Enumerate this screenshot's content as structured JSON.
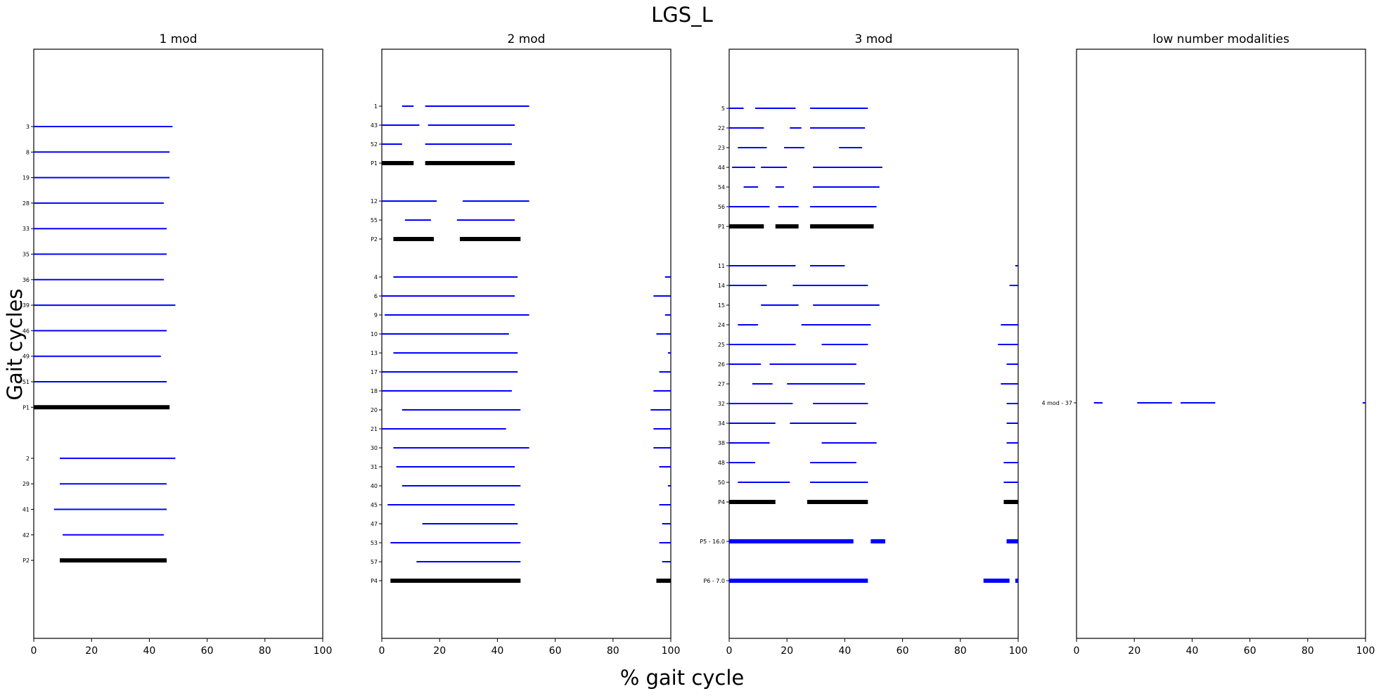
{
  "figure": {
    "title": "LGS_L",
    "xlabel": "% gait cycle",
    "ylabel": "Gait cycles"
  },
  "chart_data": [
    {
      "type": "gantt",
      "title": "1 mod",
      "xlim": [
        0,
        100
      ],
      "xticks": [
        "0",
        "20",
        "40",
        "60",
        "80",
        "100"
      ],
      "rows": [
        {
          "label": "3",
          "color": "#0000ff",
          "thick": false,
          "segments": [
            [
              0,
              48
            ]
          ]
        },
        {
          "label": "8",
          "color": "#0000ff",
          "thick": false,
          "segments": [
            [
              0,
              47
            ]
          ]
        },
        {
          "label": "19",
          "color": "#0000ff",
          "thick": false,
          "segments": [
            [
              0,
              47
            ]
          ]
        },
        {
          "label": "28",
          "color": "#0000ff",
          "thick": false,
          "segments": [
            [
              0,
              45
            ]
          ]
        },
        {
          "label": "33",
          "color": "#0000ff",
          "thick": false,
          "segments": [
            [
              0,
              46
            ]
          ]
        },
        {
          "label": "35",
          "color": "#0000ff",
          "thick": false,
          "segments": [
            [
              0,
              46
            ]
          ]
        },
        {
          "label": "36",
          "color": "#0000ff",
          "thick": false,
          "segments": [
            [
              0,
              45
            ]
          ]
        },
        {
          "label": "39",
          "color": "#0000ff",
          "thick": false,
          "segments": [
            [
              0,
              49
            ]
          ]
        },
        {
          "label": "46",
          "color": "#0000ff",
          "thick": false,
          "segments": [
            [
              0,
              46
            ]
          ]
        },
        {
          "label": "49",
          "color": "#0000ff",
          "thick": false,
          "segments": [
            [
              0,
              44
            ]
          ]
        },
        {
          "label": "51",
          "color": "#0000ff",
          "thick": false,
          "segments": [
            [
              0,
              46
            ]
          ]
        },
        {
          "label": "P1",
          "color": "#000000",
          "thick": true,
          "segments": [
            [
              0,
              47
            ]
          ]
        },
        {
          "gap": true
        },
        {
          "label": "2",
          "color": "#0000ff",
          "thick": false,
          "segments": [
            [
              9,
              49
            ]
          ]
        },
        {
          "label": "29",
          "color": "#0000ff",
          "thick": false,
          "segments": [
            [
              9,
              46
            ]
          ]
        },
        {
          "label": "41",
          "color": "#0000ff",
          "thick": false,
          "segments": [
            [
              7,
              46
            ]
          ]
        },
        {
          "label": "42",
          "color": "#0000ff",
          "thick": false,
          "segments": [
            [
              10,
              45
            ]
          ]
        },
        {
          "label": "P2",
          "color": "#000000",
          "thick": true,
          "segments": [
            [
              9,
              46
            ]
          ]
        }
      ]
    },
    {
      "type": "gantt",
      "title": "2 mod",
      "xlim": [
        0,
        100
      ],
      "xticks": [
        "0",
        "20",
        "40",
        "60",
        "80",
        "100"
      ],
      "rows": [
        {
          "label": "1",
          "color": "#0000ff",
          "thick": false,
          "segments": [
            [
              7,
              11
            ],
            [
              15,
              51
            ]
          ]
        },
        {
          "label": "43",
          "color": "#0000ff",
          "thick": false,
          "segments": [
            [
              0,
              13
            ],
            [
              16,
              46
            ]
          ]
        },
        {
          "label": "52",
          "color": "#0000ff",
          "thick": false,
          "segments": [
            [
              0,
              7
            ],
            [
              15,
              45
            ]
          ]
        },
        {
          "label": "P1",
          "color": "#000000",
          "thick": true,
          "segments": [
            [
              0,
              11
            ],
            [
              15,
              46
            ]
          ]
        },
        {
          "gap": true
        },
        {
          "label": "12",
          "color": "#0000ff",
          "thick": false,
          "segments": [
            [
              0,
              19
            ],
            [
              28,
              51
            ]
          ]
        },
        {
          "label": "55",
          "color": "#0000ff",
          "thick": false,
          "segments": [
            [
              8,
              17
            ],
            [
              26,
              46
            ]
          ]
        },
        {
          "label": "P2",
          "color": "#000000",
          "thick": true,
          "segments": [
            [
              4,
              18
            ],
            [
              27,
              48
            ]
          ]
        },
        {
          "gap": true
        },
        {
          "label": "4",
          "color": "#0000ff",
          "thick": false,
          "segments": [
            [
              4,
              47
            ],
            [
              98,
              100
            ]
          ]
        },
        {
          "label": "6",
          "color": "#0000ff",
          "thick": false,
          "segments": [
            [
              0,
              46
            ],
            [
              94,
              100
            ]
          ]
        },
        {
          "label": "9",
          "color": "#0000ff",
          "thick": false,
          "segments": [
            [
              1,
              51
            ],
            [
              98,
              100
            ]
          ]
        },
        {
          "label": "10",
          "color": "#0000ff",
          "thick": false,
          "segments": [
            [
              0,
              44
            ],
            [
              95,
              100
            ]
          ]
        },
        {
          "label": "13",
          "color": "#0000ff",
          "thick": false,
          "segments": [
            [
              4,
              47
            ],
            [
              99,
              100
            ]
          ]
        },
        {
          "label": "17",
          "color": "#0000ff",
          "thick": false,
          "segments": [
            [
              0,
              47
            ],
            [
              96,
              100
            ]
          ]
        },
        {
          "label": "18",
          "color": "#0000ff",
          "thick": false,
          "segments": [
            [
              0,
              45
            ],
            [
              94,
              100
            ]
          ]
        },
        {
          "label": "20",
          "color": "#0000ff",
          "thick": false,
          "segments": [
            [
              7,
              48
            ],
            [
              93,
              100
            ]
          ]
        },
        {
          "label": "21",
          "color": "#0000ff",
          "thick": false,
          "segments": [
            [
              0,
              43
            ],
            [
              94,
              100
            ]
          ]
        },
        {
          "label": "30",
          "color": "#0000ff",
          "thick": false,
          "segments": [
            [
              4,
              51
            ],
            [
              94,
              100
            ]
          ]
        },
        {
          "label": "31",
          "color": "#0000ff",
          "thick": false,
          "segments": [
            [
              5,
              46
            ],
            [
              96,
              100
            ]
          ]
        },
        {
          "label": "40",
          "color": "#0000ff",
          "thick": false,
          "segments": [
            [
              7,
              48
            ],
            [
              99,
              100
            ]
          ]
        },
        {
          "label": "45",
          "color": "#0000ff",
          "thick": false,
          "segments": [
            [
              2,
              46
            ],
            [
              96,
              100
            ]
          ]
        },
        {
          "label": "47",
          "color": "#0000ff",
          "thick": false,
          "segments": [
            [
              14,
              47
            ],
            [
              97,
              100
            ]
          ]
        },
        {
          "label": "53",
          "color": "#0000ff",
          "thick": false,
          "segments": [
            [
              3,
              48
            ],
            [
              96,
              100
            ]
          ]
        },
        {
          "label": "57",
          "color": "#0000ff",
          "thick": false,
          "segments": [
            [
              12,
              48
            ],
            [
              97,
              100
            ]
          ]
        },
        {
          "label": "P4",
          "color": "#000000",
          "thick": true,
          "segments": [
            [
              3,
              48
            ],
            [
              95,
              100
            ]
          ]
        }
      ]
    },
    {
      "type": "gantt",
      "title": "3 mod",
      "xlim": [
        0,
        100
      ],
      "xticks": [
        "0",
        "20",
        "40",
        "60",
        "80",
        "100"
      ],
      "rows": [
        {
          "label": "5",
          "color": "#0000ff",
          "thick": false,
          "segments": [
            [
              0,
              5
            ],
            [
              9,
              23
            ],
            [
              28,
              48
            ]
          ]
        },
        {
          "label": "22",
          "color": "#0000ff",
          "thick": false,
          "segments": [
            [
              0,
              12
            ],
            [
              21,
              25
            ],
            [
              28,
              47
            ]
          ]
        },
        {
          "label": "23",
          "color": "#0000ff",
          "thick": false,
          "segments": [
            [
              3,
              13
            ],
            [
              19,
              26
            ],
            [
              38,
              46
            ]
          ]
        },
        {
          "label": "44",
          "color": "#0000ff",
          "thick": false,
          "segments": [
            [
              1,
              9
            ],
            [
              11,
              20
            ],
            [
              29,
              53
            ]
          ]
        },
        {
          "label": "54",
          "color": "#0000ff",
          "thick": false,
          "segments": [
            [
              5,
              10
            ],
            [
              16,
              19
            ],
            [
              29,
              52
            ]
          ]
        },
        {
          "label": "56",
          "color": "#0000ff",
          "thick": false,
          "segments": [
            [
              0,
              14
            ],
            [
              17,
              24
            ],
            [
              28,
              51
            ]
          ]
        },
        {
          "label": "P1",
          "color": "#000000",
          "thick": true,
          "segments": [
            [
              0,
              12
            ],
            [
              16,
              24
            ],
            [
              28,
              50
            ]
          ]
        },
        {
          "gap": true
        },
        {
          "label": "11",
          "color": "#0000ff",
          "thick": false,
          "segments": [
            [
              0,
              23
            ],
            [
              28,
              40
            ],
            [
              99,
              100
            ]
          ]
        },
        {
          "label": "14",
          "color": "#0000ff",
          "thick": false,
          "segments": [
            [
              0,
              13
            ],
            [
              22,
              48
            ],
            [
              97,
              100
            ]
          ]
        },
        {
          "label": "15",
          "color": "#0000ff",
          "thick": false,
          "segments": [
            [
              11,
              24
            ],
            [
              29,
              52
            ]
          ]
        },
        {
          "label": "24",
          "color": "#0000ff",
          "thick": false,
          "segments": [
            [
              3,
              10
            ],
            [
              25,
              49
            ],
            [
              94,
              100
            ]
          ]
        },
        {
          "label": "25",
          "color": "#0000ff",
          "thick": false,
          "segments": [
            [
              0,
              23
            ],
            [
              32,
              48
            ],
            [
              93,
              100
            ]
          ]
        },
        {
          "label": "26",
          "color": "#0000ff",
          "thick": false,
          "segments": [
            [
              0,
              11
            ],
            [
              14,
              44
            ],
            [
              96,
              100
            ]
          ]
        },
        {
          "label": "27",
          "color": "#0000ff",
          "thick": false,
          "segments": [
            [
              8,
              15
            ],
            [
              20,
              47
            ],
            [
              94,
              100
            ]
          ]
        },
        {
          "label": "32",
          "color": "#0000ff",
          "thick": false,
          "segments": [
            [
              0,
              22
            ],
            [
              29,
              48
            ],
            [
              96,
              100
            ]
          ]
        },
        {
          "label": "34",
          "color": "#0000ff",
          "thick": false,
          "segments": [
            [
              0,
              16
            ],
            [
              21,
              44
            ],
            [
              96,
              100
            ]
          ]
        },
        {
          "label": "38",
          "color": "#0000ff",
          "thick": false,
          "segments": [
            [
              0,
              14
            ],
            [
              32,
              51
            ],
            [
              96,
              100
            ]
          ]
        },
        {
          "label": "48",
          "color": "#0000ff",
          "thick": false,
          "segments": [
            [
              0,
              9
            ],
            [
              28,
              44
            ],
            [
              95,
              100
            ]
          ]
        },
        {
          "label": "50",
          "color": "#0000ff",
          "thick": false,
          "segments": [
            [
              3,
              21
            ],
            [
              28,
              48
            ],
            [
              95,
              100
            ]
          ]
        },
        {
          "label": "P4",
          "color": "#000000",
          "thick": true,
          "segments": [
            [
              0,
              16
            ],
            [
              27,
              48
            ],
            [
              95,
              100
            ]
          ]
        },
        {
          "gap": true
        },
        {
          "label": "P5 - 16.0",
          "color": "#0000ff",
          "thick": true,
          "segments": [
            [
              0,
              43
            ],
            [
              49,
              54
            ],
            [
              96,
              100
            ]
          ]
        },
        {
          "gap": true
        },
        {
          "label": "P6 - 7.0",
          "color": "#0000ff",
          "thick": true,
          "segments": [
            [
              0,
              48
            ],
            [
              88,
              97
            ],
            [
              99,
              100
            ]
          ]
        }
      ]
    },
    {
      "type": "gantt",
      "title": "low number modalities",
      "xlim": [
        0,
        100
      ],
      "xticks": [
        "0",
        "20",
        "40",
        "60",
        "80",
        "100"
      ],
      "rows": [
        {
          "label": "4 mod - 37",
          "color": "#0000ff",
          "thick": false,
          "segments": [
            [
              6,
              9
            ],
            [
              21,
              33
            ],
            [
              36,
              48
            ],
            [
              99,
              100
            ]
          ]
        }
      ]
    }
  ]
}
